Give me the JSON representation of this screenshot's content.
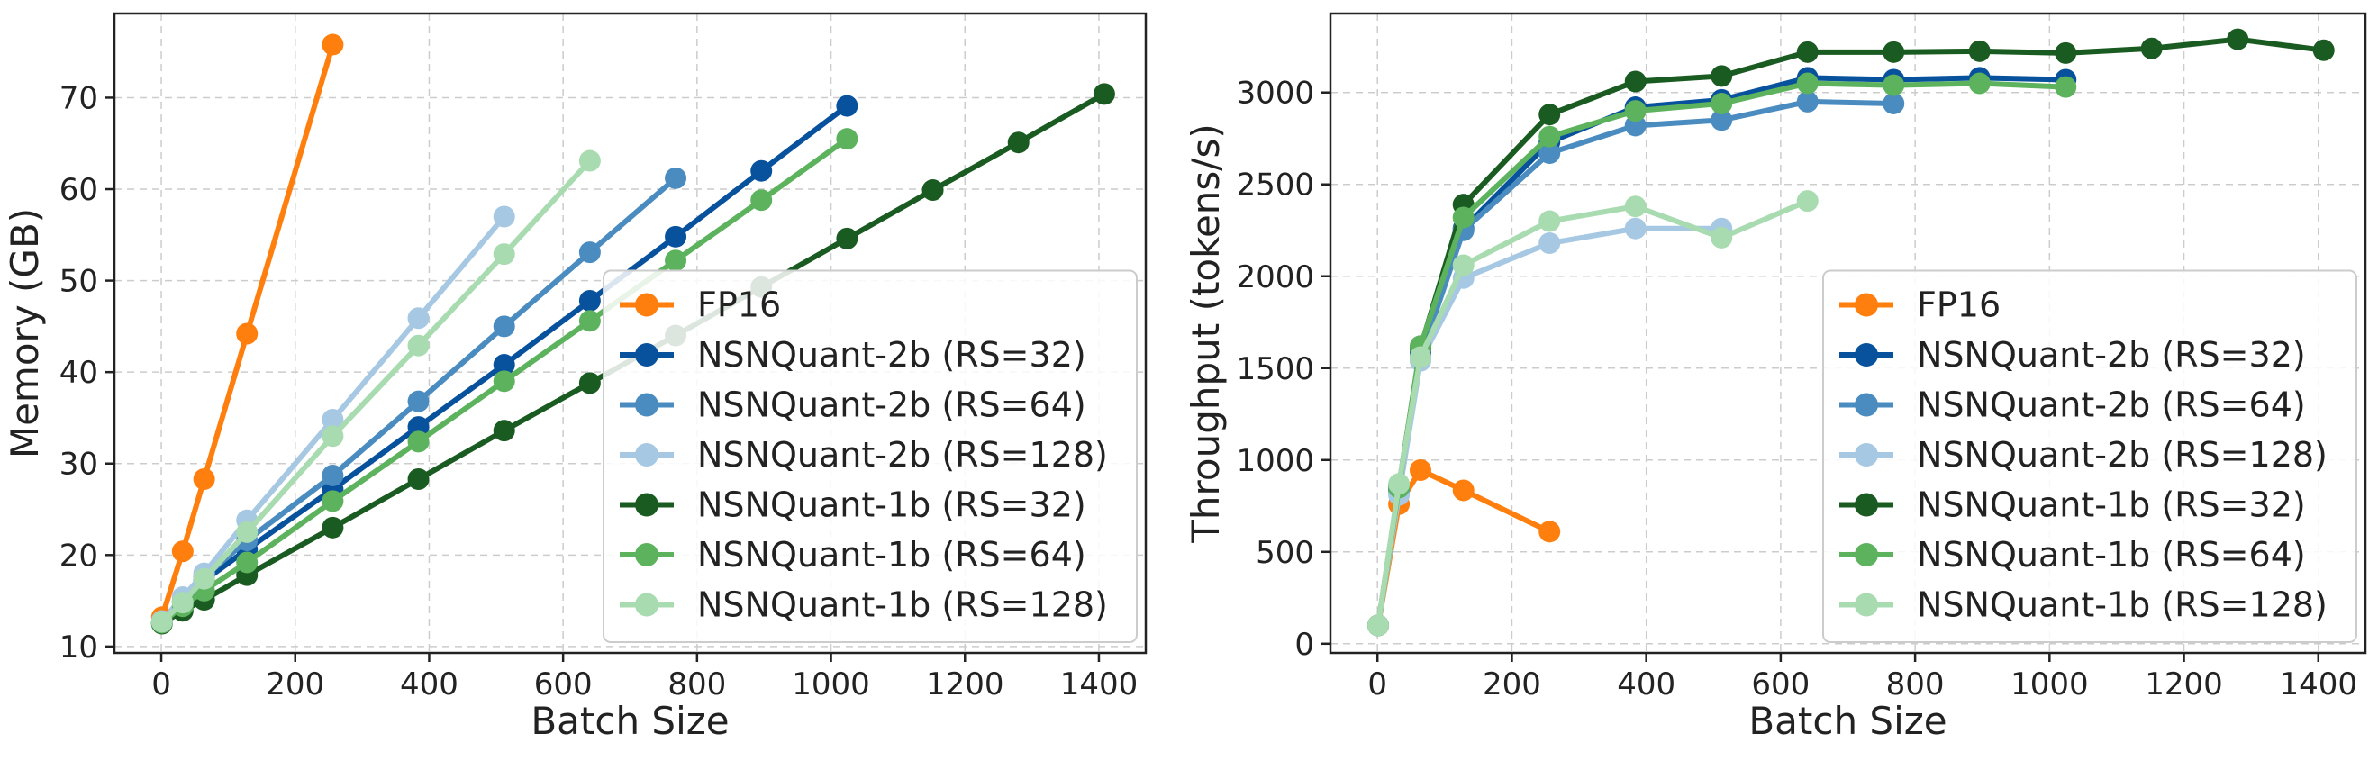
{
  "chart_data": [
    {
      "type": "line",
      "id": "memory",
      "title": "",
      "xlabel": "Batch Size",
      "ylabel": "Memory (GB)",
      "xlim": [
        -70,
        1470
      ],
      "ylim": [
        9.3,
        79.2
      ],
      "xticks": [
        0,
        200,
        400,
        600,
        800,
        1000,
        1200,
        1400
      ],
      "yticks": [
        10,
        20,
        30,
        40,
        50,
        60,
        70
      ],
      "legend": "lower-right",
      "grid": true,
      "series": [
        {
          "name": "FP16",
          "color": "#ff7f0e",
          "x": [
            1,
            32,
            64,
            128,
            256
          ],
          "y": [
            13.2,
            20.4,
            28.3,
            44.2,
            75.8
          ]
        },
        {
          "name": "NSNQuant-2b (RS=32)",
          "color": "#08519c",
          "x": [
            1,
            32,
            64,
            128,
            256,
            384,
            512,
            640,
            768,
            896,
            1024
          ],
          "y": [
            12.6,
            14.8,
            17.2,
            20.6,
            27.2,
            34.0,
            40.8,
            47.8,
            54.8,
            62.0,
            69.1
          ]
        },
        {
          "name": "NSNQuant-2b (RS=64)",
          "color": "#4a8cc0",
          "x": [
            1,
            32,
            64,
            128,
            256,
            384,
            512,
            640,
            768
          ],
          "y": [
            12.6,
            15.0,
            17.6,
            21.6,
            28.7,
            36.8,
            45.0,
            53.1,
            61.2
          ]
        },
        {
          "name": "NSNQuant-2b (RS=128)",
          "color": "#a6c8e3",
          "x": [
            1,
            32,
            64,
            128,
            256,
            384,
            512
          ],
          "y": [
            12.8,
            15.4,
            18.0,
            23.8,
            34.8,
            45.9,
            57.0
          ]
        },
        {
          "name": "NSNQuant-1b (RS=32)",
          "color": "#1a5b22",
          "x": [
            1,
            32,
            64,
            128,
            256,
            384,
            512,
            640,
            768,
            896,
            1024,
            1152,
            1280,
            1408
          ],
          "y": [
            12.5,
            13.9,
            15.1,
            17.8,
            23.0,
            28.3,
            33.6,
            38.8,
            44.0,
            49.3,
            54.6,
            59.9,
            65.1,
            70.4
          ]
        },
        {
          "name": "NSNQuant-1b (RS=64)",
          "color": "#5db35d",
          "x": [
            1,
            32,
            64,
            128,
            256,
            384,
            512,
            640,
            768,
            896,
            1024
          ],
          "y": [
            12.6,
            14.4,
            16.1,
            19.2,
            25.9,
            32.4,
            39.0,
            45.6,
            52.2,
            58.8,
            65.5
          ]
        },
        {
          "name": "NSNQuant-1b (RS=128)",
          "color": "#a8dbb0",
          "x": [
            1,
            32,
            64,
            128,
            256,
            384,
            512,
            640
          ],
          "y": [
            12.7,
            14.8,
            17.4,
            22.5,
            33.0,
            42.9,
            52.9,
            63.1
          ]
        }
      ]
    },
    {
      "type": "line",
      "id": "throughput",
      "title": "",
      "xlabel": "Batch Size",
      "ylabel": "Throughput (tokens/s)",
      "xlim": [
        -70,
        1470
      ],
      "ylim": [
        -50,
        3430
      ],
      "xticks": [
        0,
        200,
        400,
        600,
        800,
        1000,
        1200,
        1400
      ],
      "yticks": [
        0,
        500,
        1000,
        1500,
        2000,
        2500,
        3000
      ],
      "legend": "lower-right",
      "grid": true,
      "series": [
        {
          "name": "FP16",
          "color": "#ff7f0e",
          "x": [
            1,
            32,
            64,
            128,
            256
          ],
          "y": [
            100,
            760,
            945,
            835,
            610
          ]
        },
        {
          "name": "NSNQuant-2b (RS=32)",
          "color": "#08519c",
          "x": [
            1,
            32,
            64,
            128,
            256,
            384,
            512,
            640,
            768,
            896,
            1024
          ],
          "y": [
            100,
            840,
            1580,
            2260,
            2730,
            2920,
            2960,
            3080,
            3070,
            3080,
            3070
          ]
        },
        {
          "name": "NSNQuant-2b (RS=64)",
          "color": "#4a8cc0",
          "x": [
            1,
            32,
            64,
            128,
            256,
            384,
            512,
            640,
            768
          ],
          "y": [
            100,
            830,
            1560,
            2250,
            2670,
            2820,
            2850,
            2950,
            2940
          ]
        },
        {
          "name": "NSNQuant-2b (RS=128)",
          "color": "#a6c8e3",
          "x": [
            1,
            32,
            64,
            128,
            256,
            384,
            512
          ],
          "y": [
            100,
            810,
            1540,
            1990,
            2180,
            2260,
            2260
          ]
        },
        {
          "name": "NSNQuant-1b (RS=32)",
          "color": "#1a5b22",
          "x": [
            1,
            32,
            64,
            128,
            256,
            384,
            512,
            640,
            768,
            896,
            1024,
            1152,
            1280,
            1408
          ],
          "y": [
            100,
            860,
            1610,
            2390,
            2880,
            3060,
            3090,
            3220,
            3220,
            3225,
            3215,
            3240,
            3290,
            3230
          ]
        },
        {
          "name": "NSNQuant-1b (RS=64)",
          "color": "#5db35d",
          "x": [
            1,
            32,
            64,
            128,
            256,
            384,
            512,
            640,
            768,
            896,
            1024
          ],
          "y": [
            100,
            850,
            1620,
            2320,
            2760,
            2900,
            2940,
            3050,
            3040,
            3050,
            3030
          ]
        },
        {
          "name": "NSNQuant-1b (RS=128)",
          "color": "#a8dbb0",
          "x": [
            1,
            32,
            64,
            128,
            256,
            384,
            512,
            640
          ],
          "y": [
            100,
            870,
            1560,
            2060,
            2300,
            2380,
            2210,
            2410
          ]
        }
      ]
    }
  ]
}
